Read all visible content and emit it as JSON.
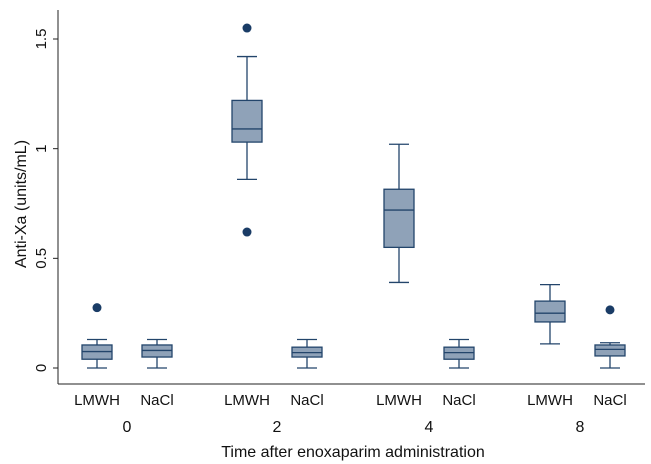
{
  "chart_data": {
    "type": "box",
    "title": "",
    "xlabel": "Time after enoxaparim administration",
    "ylabel": "Anti-Xa (units/mL)",
    "ylim": [
      0,
      1.5
    ],
    "yticks": [
      {
        "value": 0,
        "label": "0"
      },
      {
        "value": 0.5,
        "label": "0.5"
      },
      {
        "value": 1,
        "label": "1"
      },
      {
        "value": 1.5,
        "label": "1.5"
      }
    ],
    "grid": false,
    "legend": "none",
    "groups": [
      {
        "label": "0",
        "boxes": [
          {
            "category": "LMWH",
            "whisker_low": 0.0,
            "q1": 0.04,
            "median": 0.075,
            "q3": 0.105,
            "whisker_high": 0.13,
            "outliers": [
              0.275
            ]
          },
          {
            "category": "NaCl",
            "whisker_low": 0.0,
            "q1": 0.05,
            "median": 0.08,
            "q3": 0.105,
            "whisker_high": 0.13,
            "outliers": []
          }
        ]
      },
      {
        "label": "2",
        "boxes": [
          {
            "category": "LMWH",
            "whisker_low": 0.86,
            "q1": 1.03,
            "median": 1.09,
            "q3": 1.22,
            "whisker_high": 1.42,
            "outliers": [
              1.55,
              0.62
            ]
          },
          {
            "category": "NaCl",
            "whisker_low": 0.0,
            "q1": 0.05,
            "median": 0.07,
            "q3": 0.095,
            "whisker_high": 0.13,
            "outliers": []
          }
        ]
      },
      {
        "label": "4",
        "boxes": [
          {
            "category": "LMWH",
            "whisker_low": 0.39,
            "q1": 0.55,
            "median": 0.72,
            "q3": 0.815,
            "whisker_high": 1.02,
            "outliers": []
          },
          {
            "category": "NaCl",
            "whisker_low": 0.0,
            "q1": 0.04,
            "median": 0.07,
            "q3": 0.095,
            "whisker_high": 0.13,
            "outliers": []
          }
        ]
      },
      {
        "label": "8",
        "boxes": [
          {
            "category": "LMWH",
            "whisker_low": 0.11,
            "q1": 0.21,
            "median": 0.25,
            "q3": 0.305,
            "whisker_high": 0.38,
            "outliers": []
          },
          {
            "category": "NaCl",
            "whisker_low": 0.0,
            "q1": 0.055,
            "median": 0.085,
            "q3": 0.105,
            "whisker_high": 0.115,
            "outliers": [
              0.265
            ]
          }
        ]
      }
    ],
    "colors": {
      "box_fill": "#8fa2b8",
      "stroke": "#23456b",
      "outlier": "#1a3c66",
      "axis": "#222222"
    }
  }
}
